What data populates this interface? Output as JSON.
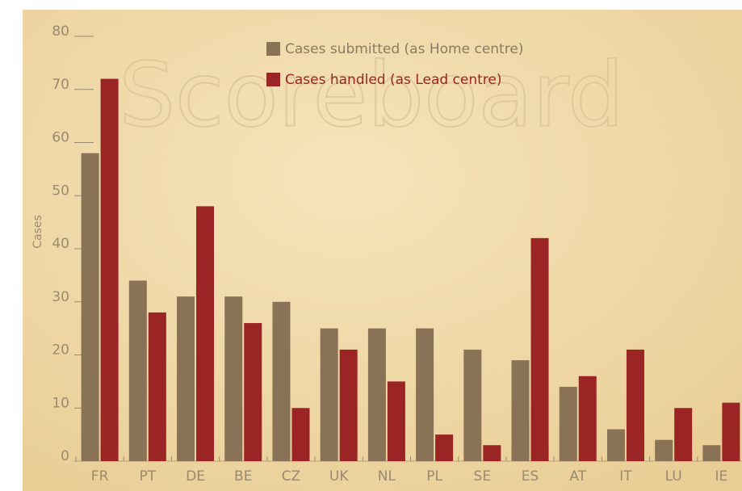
{
  "chart_data": {
    "type": "bar",
    "watermark": "Scoreboard",
    "ylabel": "Cases",
    "categories": [
      "FR",
      "PT",
      "DE",
      "BE",
      "CZ",
      "UK",
      "NL",
      "PL",
      "SE",
      "ES",
      "AT",
      "IT",
      "LU",
      "IE"
    ],
    "series": [
      {
        "name": "Cases submitted (as Home centre)",
        "color": "#8a7256",
        "values": [
          58,
          34,
          31,
          31,
          30,
          25,
          25,
          25,
          21,
          19,
          14,
          6,
          4,
          3
        ]
      },
      {
        "name": "Cases handled (as Lead centre)",
        "color": "#9b2424",
        "values": [
          72,
          28,
          48,
          26,
          10,
          21,
          15,
          5,
          3,
          42,
          16,
          21,
          10,
          11
        ]
      }
    ],
    "ylim": [
      0,
      80
    ],
    "yticks": [
      0,
      10,
      20,
      30,
      40,
      50,
      60,
      70,
      80
    ]
  }
}
